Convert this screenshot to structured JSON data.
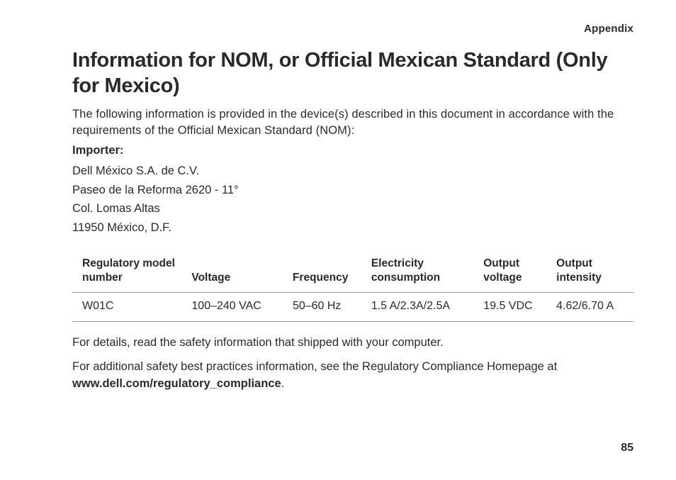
{
  "header": {
    "section_label": "Appendix"
  },
  "title": "Information for NOM, or Official Mexican Standard (Only for Mexico)",
  "intro": "The following information is provided in the device(s) described in this document in accordance with the requirements of the Official Mexican Standard (NOM):",
  "importer": {
    "label": "Importer:",
    "lines": [
      "Dell México S.A. de C.V.",
      "Paseo de la Reforma 2620 - 11°",
      "Col. Lomas Altas",
      "11950 México, D.F."
    ]
  },
  "table": {
    "columns": [
      "Regulatory model number",
      "Voltage",
      "Frequency",
      "Electricity consumption",
      "Output voltage",
      "Output intensity"
    ],
    "rows": [
      [
        "W01C",
        "100–240 VAC",
        "50–60 Hz",
        "1.5 A/2.3A/2.5A",
        "19.5 VDC",
        "4.62/6.70 A"
      ]
    ],
    "col_widths": [
      "20%",
      "18%",
      "14%",
      "20%",
      "13%",
      "15%"
    ]
  },
  "footer": {
    "line1": "For details, read the safety information that shipped with your computer.",
    "line2_pre": "For additional safety best practices information, see the Regulatory Compliance Homepage at ",
    "line2_bold": "www.dell.com/regulatory_compliance",
    "line2_post": "."
  },
  "page_number": "85",
  "styling": {
    "background_color": "#ffffff",
    "text_color": "#2a2a2a",
    "border_color": "#999999",
    "title_fontsize": 29,
    "body_fontsize": 16.5,
    "table_header_fontsize": 15.5,
    "table_cell_fontsize": 16
  }
}
